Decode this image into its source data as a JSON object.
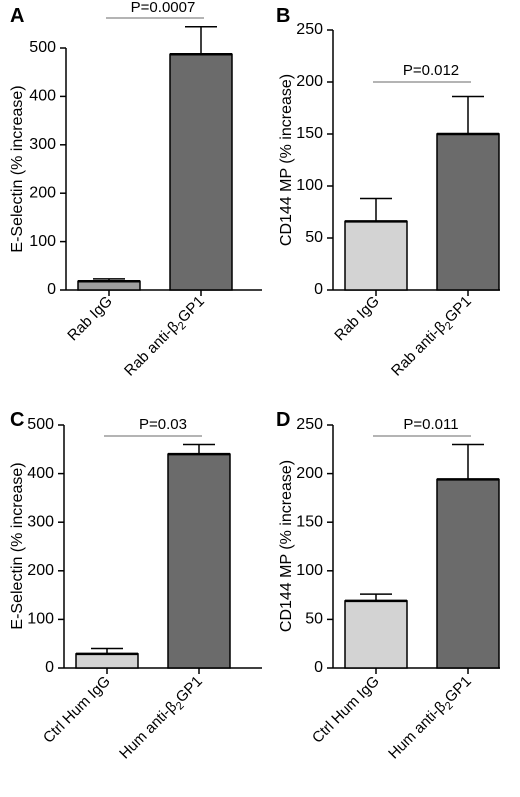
{
  "chart_data": [
    {
      "type": "bar",
      "panel_label": "A",
      "ylabel": "E-Selectin (% increase)",
      "ylim": [
        0,
        500
      ],
      "yticks": [
        0,
        100,
        200,
        300,
        400,
        500
      ],
      "categories": [
        {
          "parts": [
            {
              "t": "Rab IgG"
            }
          ]
        },
        {
          "parts": [
            {
              "t": "Rab anti-β"
            },
            {
              "t": "2",
              "sub": true
            },
            {
              "t": "GP1"
            }
          ]
        }
      ],
      "values": [
        18,
        487
      ],
      "errors": [
        5,
        57
      ],
      "bar_colors": [
        "#9e9e9e",
        "#6b6b6b"
      ],
      "p_value": "P=0.0007"
    },
    {
      "type": "bar",
      "panel_label": "B",
      "ylabel": "CD144 MP (% increase)",
      "ylim": [
        0,
        250
      ],
      "yticks": [
        0,
        50,
        100,
        150,
        200,
        250
      ],
      "categories": [
        {
          "parts": [
            {
              "t": "Rab IgG"
            }
          ]
        },
        {
          "parts": [
            {
              "t": "Rab anti-β"
            },
            {
              "t": "2",
              "sub": true
            },
            {
              "t": "GP1"
            }
          ]
        }
      ],
      "values": [
        66,
        150
      ],
      "errors": [
        22,
        36
      ],
      "bar_colors": [
        "#d3d3d3",
        "#6b6b6b"
      ],
      "p_value": "P=0.012"
    },
    {
      "type": "bar",
      "panel_label": "C",
      "ylabel": "E-Selectin (% increase)",
      "ylim": [
        0,
        500
      ],
      "yticks": [
        0,
        100,
        200,
        300,
        400,
        500
      ],
      "categories": [
        {
          "parts": [
            {
              "t": "Ctrl Hum IgG"
            }
          ]
        },
        {
          "parts": [
            {
              "t": "Hum anti-β"
            },
            {
              "t": "2",
              "sub": true
            },
            {
              "t": "GP1"
            }
          ]
        }
      ],
      "values": [
        29,
        440
      ],
      "errors": [
        11,
        20
      ],
      "bar_colors": [
        "#d3d3d3",
        "#6b6b6b"
      ],
      "p_value": "P=0.03"
    },
    {
      "type": "bar",
      "panel_label": "D",
      "ylabel": "CD144 MP (% increase)",
      "ylim": [
        0,
        250
      ],
      "yticks": [
        0,
        50,
        100,
        150,
        200,
        250
      ],
      "categories": [
        {
          "parts": [
            {
              "t": "Ctrl Hum IgG"
            }
          ]
        },
        {
          "parts": [
            {
              "t": "Hum anti-β"
            },
            {
              "t": "2",
              "sub": true
            },
            {
              "t": "GP1"
            }
          ]
        }
      ],
      "values": [
        69,
        194
      ],
      "errors": [
        7,
        36
      ],
      "bar_colors": [
        "#d3d3d3",
        "#6b6b6b"
      ],
      "p_value": "P=0.011"
    }
  ]
}
